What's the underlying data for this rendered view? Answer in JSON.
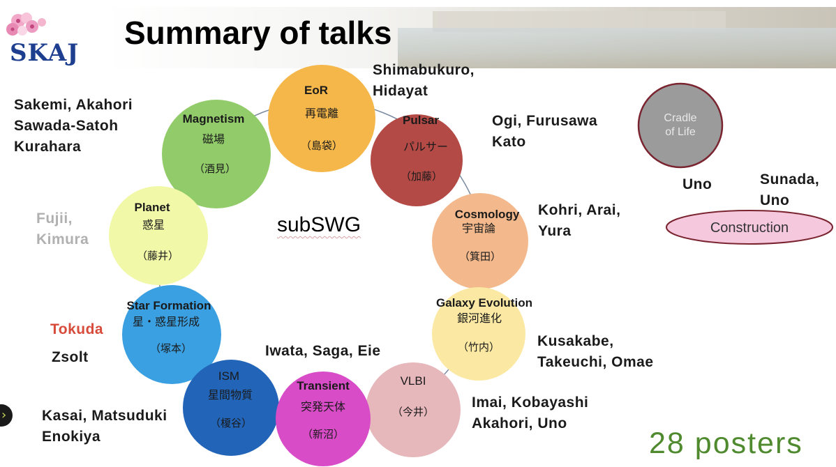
{
  "slide": {
    "title": "Summary of talks",
    "logo_text": "SKAJ",
    "center_label": "subSWG",
    "posters_label": "28 posters"
  },
  "colors": {
    "eor": "#f5b74a",
    "pulsar": "#b34a46",
    "magnetism": "#92cc6a",
    "planet": "#f1f8a8",
    "cosmology": "#f3b98c",
    "star_formation": "#3aa0e2",
    "galaxy_evolution": "#fbe9a3",
    "ism": "#2164b8",
    "transient": "#d94cc8",
    "vlbi": "#e6b7bb",
    "cradle": "#9b9b9b",
    "construction": "#f5c8de",
    "posters": "#4f8a2f",
    "tokuda": "#d84a3a"
  },
  "swg_circles": [
    {
      "key": "eor",
      "name": "EoR",
      "jp": "再電離",
      "leader": "（島袋）"
    },
    {
      "key": "pulsar",
      "name": "Pulsar",
      "jp": "パルサー",
      "leader": "（加藤）"
    },
    {
      "key": "magnetism",
      "name": "Magnetism",
      "jp": "磁場",
      "leader": "（酒見）"
    },
    {
      "key": "planet",
      "name": "Planet",
      "jp": "惑星",
      "leader": "（藤井）"
    },
    {
      "key": "cosmology",
      "name": "Cosmology",
      "jp": "宇宙論",
      "leader": "（箕田）"
    },
    {
      "key": "star_formation",
      "name": "Star Formation",
      "jp": "星・惑星形成",
      "leader": "（塚本）"
    },
    {
      "key": "galaxy_evolution",
      "name": "Galaxy Evolution",
      "jp": "銀河進化",
      "leader": "（竹内）"
    },
    {
      "key": "ism",
      "name": "ISM",
      "jp": "星間物質",
      "leader": "（榎谷）"
    },
    {
      "key": "transient",
      "name": "Transient",
      "jp": "突発天体",
      "leader": "（新沼）"
    },
    {
      "key": "vlbi",
      "name": "VLBI",
      "jp": "",
      "leader": "（今井）"
    }
  ],
  "extra": {
    "cradle_line1": "Cradle",
    "cradle_line2": "of Life",
    "construction": "Construction"
  },
  "speakers": {
    "eor": [
      "Shimabukuro,",
      "Hidayat"
    ],
    "magnetism": [
      "Sakemi, Akahori",
      "Sawada-Satoh",
      "Kurahara"
    ],
    "pulsar": [
      "Ogi, Furusawa",
      "Kato"
    ],
    "planet": [
      "Fujii,",
      "Kimura"
    ],
    "cosmology": [
      "Kohri, Arai,",
      "Yura"
    ],
    "star_formation_red": "Tokuda",
    "star_formation": "Zsolt",
    "transient": "Iwata, Saga, Eie",
    "galaxy_evolution": [
      "Kusakabe,",
      "Takeuchi, Omae"
    ],
    "ism": [
      "Kasai, Matsuduki",
      "Enokiya"
    ],
    "vlbi": [
      "Imai, Kobayashi",
      "Akahori, Uno"
    ],
    "cradle": "Uno",
    "construction": [
      "Sunada,",
      "Uno"
    ]
  }
}
